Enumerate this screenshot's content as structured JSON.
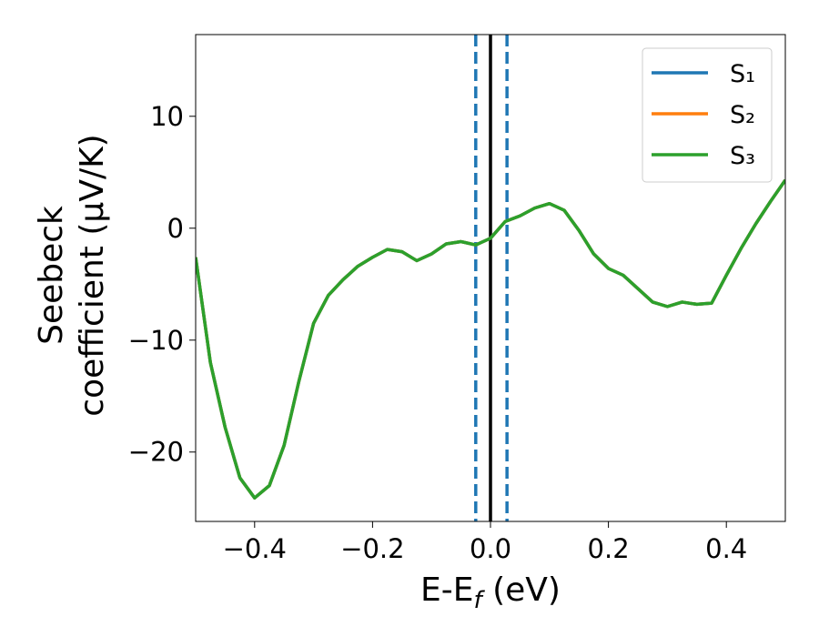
{
  "chart_data": {
    "type": "line",
    "xlabel": [
      "E-E",
      "f",
      " (eV)"
    ],
    "ylabel": [
      "Seebeck",
      "coefficient  (μV/K)"
    ],
    "x": [
      -0.5,
      -0.475,
      -0.45,
      -0.425,
      -0.4,
      -0.375,
      -0.35,
      -0.325,
      -0.3,
      -0.275,
      -0.25,
      -0.225,
      -0.2,
      -0.175,
      -0.15,
      -0.125,
      -0.1,
      -0.075,
      -0.05,
      -0.025,
      0,
      0.025,
      0.05,
      0.075,
      0.1,
      0.125,
      0.15,
      0.175,
      0.2,
      0.225,
      0.25,
      0.275,
      0.3,
      0.325,
      0.35,
      0.375,
      0.4,
      0.425,
      0.45,
      0.475,
      0.5
    ],
    "series": [
      {
        "name": "S₁",
        "color": "#1f77b4",
        "values": [
          -2.6,
          -12,
          -17.8,
          -22.3,
          -24.1,
          -23,
          -19.4,
          -13.7,
          -8.5,
          -6,
          -4.6,
          -3.4,
          -2.6,
          -1.9,
          -2.1,
          -2.9,
          -2.3,
          -1.4,
          -1.2,
          -1.5,
          -0.9,
          0.6,
          1.1,
          1.8,
          2.2,
          1.6,
          -0.2,
          -2.3,
          -3.6,
          -4.2,
          -5.4,
          -6.6,
          -7,
          -6.6,
          -6.8,
          -6.7,
          -4.2,
          -1.8,
          0.4,
          2.4,
          4.3
        ]
      },
      {
        "name": "S₂",
        "color": "#ff7f0e",
        "values": [
          -2.6,
          -12,
          -17.8,
          -22.3,
          -24.1,
          -23,
          -19.4,
          -13.7,
          -8.5,
          -6,
          -4.6,
          -3.4,
          -2.6,
          -1.9,
          -2.1,
          -2.9,
          -2.3,
          -1.4,
          -1.2,
          -1.5,
          -0.9,
          0.6,
          1.1,
          1.8,
          2.2,
          1.6,
          -0.2,
          -2.3,
          -3.6,
          -4.2,
          -5.4,
          -6.6,
          -7,
          -6.6,
          -6.8,
          -6.7,
          -4.2,
          -1.8,
          0.4,
          2.4,
          4.3
        ]
      },
      {
        "name": "S₃",
        "color": "#2ca02c",
        "values": [
          -2.6,
          -12,
          -17.8,
          -22.3,
          -24.1,
          -23,
          -19.4,
          -13.7,
          -8.5,
          -6,
          -4.6,
          -3.4,
          -2.6,
          -1.9,
          -2.1,
          -2.9,
          -2.3,
          -1.4,
          -1.2,
          -1.5,
          -0.9,
          0.6,
          1.1,
          1.8,
          2.2,
          1.6,
          -0.2,
          -2.3,
          -3.6,
          -4.2,
          -5.4,
          -6.6,
          -7,
          -6.6,
          -6.8,
          -6.7,
          -4.2,
          -1.8,
          0.4,
          2.4,
          4.3
        ]
      }
    ],
    "vlines": [
      {
        "x": -0.025,
        "color": "#1f77b4",
        "style": "dashed"
      },
      {
        "x": 0,
        "color": "#000000",
        "style": "solid"
      },
      {
        "x": 0.028,
        "color": "#1f77b4",
        "style": "dashed"
      }
    ],
    "xlim": [
      -0.5,
      0.5
    ],
    "xticks": [
      {
        "value": -0.4,
        "label": "−0.4"
      },
      {
        "value": -0.2,
        "label": "−0.2"
      },
      {
        "value": 0,
        "label": "0.0"
      },
      {
        "value": 0.2,
        "label": "0.2"
      },
      {
        "value": 0.4,
        "label": "0.4"
      }
    ],
    "ylim": [
      -26.2,
      17.3
    ],
    "yticks": [
      {
        "value": -20,
        "label": "−20"
      },
      {
        "value": -10,
        "label": "−10"
      },
      0,
      10
    ],
    "legend": "upper right",
    "grid": false
  }
}
